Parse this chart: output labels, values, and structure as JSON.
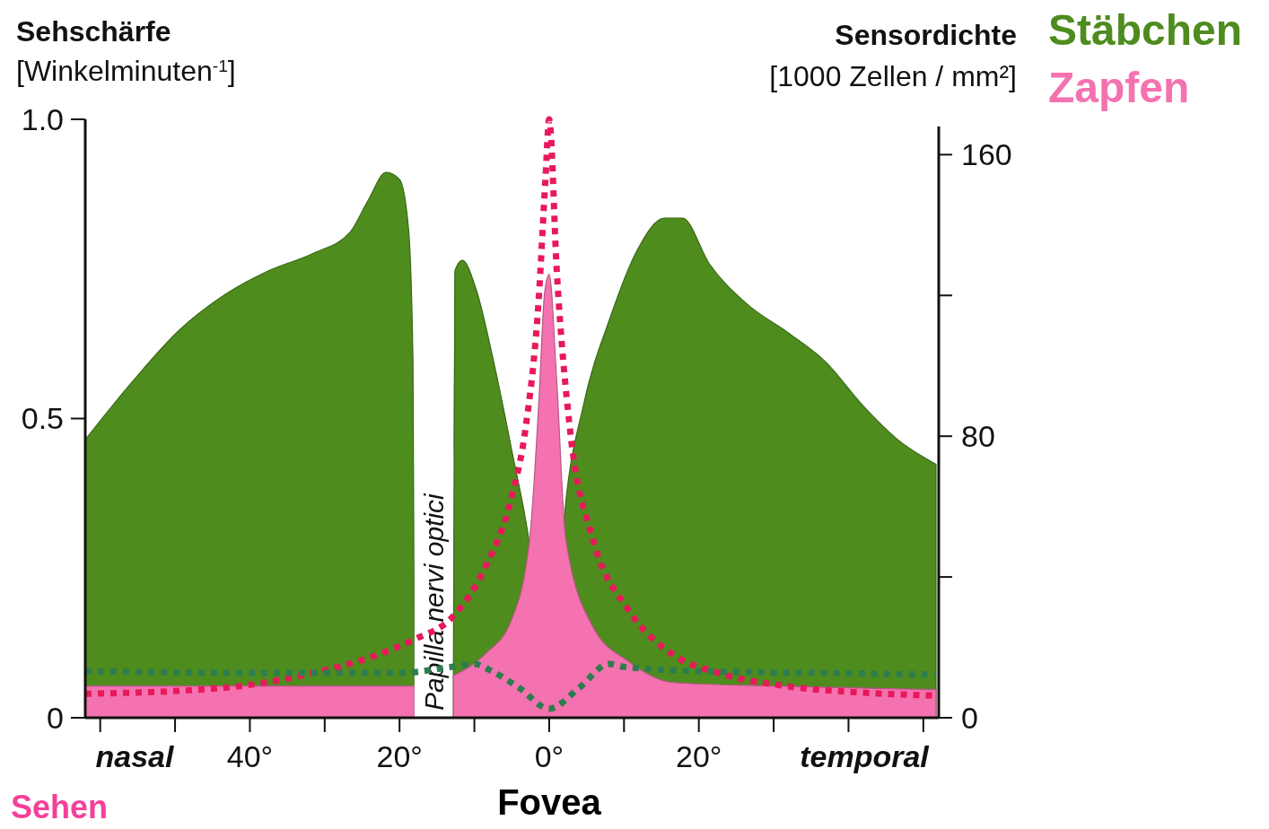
{
  "chart_data": {
    "type": "area",
    "ylabel": "Sehschärfe\n[Winkelminuten$^{-1}$]",
    "y2label": "Sensordichte\n[1000 Zellen / mm²]",
    "xlim": [
      -62,
      51.7
    ],
    "xticks": [
      {
        "value": -60,
        "label": null
      },
      {
        "value": -50,
        "label": null
      },
      {
        "value": -40,
        "label": "40°"
      },
      {
        "value": -30,
        "label": null
      },
      {
        "value": -20,
        "label": "20°"
      },
      {
        "value": -10,
        "label": null
      },
      {
        "value": 0,
        "label": "0°"
      },
      {
        "value": 10,
        "label": null
      },
      {
        "value": 20,
        "label": "20°"
      },
      {
        "value": 30,
        "label": null
      },
      {
        "value": 40,
        "label": null
      },
      {
        "value": 50,
        "label": null
      }
    ],
    "ylim": [
      0,
      1.0
    ],
    "yticks": [
      0,
      0.5,
      {
        "value": 1.0,
        "label": "1.0"
      }
    ],
    "y2lim": [
      0,
      168
    ],
    "y2ticks": [
      0,
      {
        "value": 40,
        "label": null
      },
      80,
      {
        "value": 120,
        "label": null
      },
      160
    ],
    "legend": "top right",
    "series": [
      {
        "name": "Stäbchen",
        "type": "area",
        "axis": "y2",
        "color": "#4e8c1e",
        "x": [
          -62,
          -55.5,
          -49.5,
          -43.5,
          -37.5,
          -31.5,
          -26.6,
          -24.2,
          -21.8,
          -20,
          -18.8,
          -18.2,
          -18,
          -15,
          -12.8,
          -12.6,
          -11.6,
          -9.8,
          -7.4,
          -5,
          -2.6,
          0,
          2.2,
          4.6,
          8.2,
          11.8,
          15.4,
          17.8,
          21.4,
          26.2,
          32.2,
          37,
          41.8,
          46.6,
          51.7
        ],
        "values": [
          79,
          96,
          110,
          120,
          127,
          132,
          138,
          147,
          155,
          153,
          139,
          101,
          10,
          null,
          13,
          127,
          130,
          122,
          101,
          76,
          49,
          0,
          61,
          89,
          114,
          133,
          142,
          142,
          129,
          118,
          109,
          101,
          89,
          79,
          72
        ]
      },
      {
        "name": "Zapfen",
        "type": "area",
        "axis": "y2",
        "color": "#f472b0",
        "x": [
          -62,
          -40,
          -18,
          -15,
          -12.8,
          -8.6,
          -5,
          -2.6,
          -1.4,
          -0.6,
          0,
          1,
          2.2,
          5.8,
          10.6,
          16.6,
          30,
          51.7
        ],
        "values": [
          9,
          9,
          9,
          null,
          12,
          18,
          28,
          51,
          89,
          121,
          126,
          96,
          51,
          26,
          16,
          10,
          9,
          8
        ]
      },
      {
        "type": "line",
        "line_style": "dotted",
        "color": "#e8195a",
        "x": [
          -62,
          -43.5,
          -31.5,
          -23,
          -18.2,
          -12.8,
          -8.6,
          -5,
          -3.2,
          -1.4,
          -0.5,
          0,
          1,
          2.8,
          5.8,
          10.6,
          16.6,
          22.6,
          32.2,
          41.8,
          51.4
        ],
        "values": [
          0.04,
          0.05,
          0.075,
          0.105,
          0.13,
          0.17,
          0.25,
          0.37,
          0.48,
          0.7,
          0.9,
          1.0,
          0.75,
          0.48,
          0.3,
          0.18,
          0.105,
          0.075,
          0.052,
          0.042,
          0.037
        ]
      },
      {
        "type": "line",
        "line_style": "dotted",
        "color": "#2e7d4f",
        "x": [
          -62,
          -40,
          -20,
          -13,
          -10,
          -8,
          -4,
          0,
          4,
          8,
          10,
          20,
          35,
          51.7
        ],
        "values": [
          0.078,
          0.075,
          0.075,
          0.085,
          0.09,
          0.08,
          0.05,
          0.015,
          0.05,
          0.09,
          0.085,
          0.078,
          0.075,
          0.072
        ]
      }
    ],
    "bands": [
      {
        "axis": "x",
        "from": -18,
        "to": -13,
        "label": "Papilla nervi optici",
        "color": "#ffffff"
      }
    ],
    "annotations": [
      "nasal",
      "temporal",
      "Fovea",
      "Sehen"
    ]
  }
}
